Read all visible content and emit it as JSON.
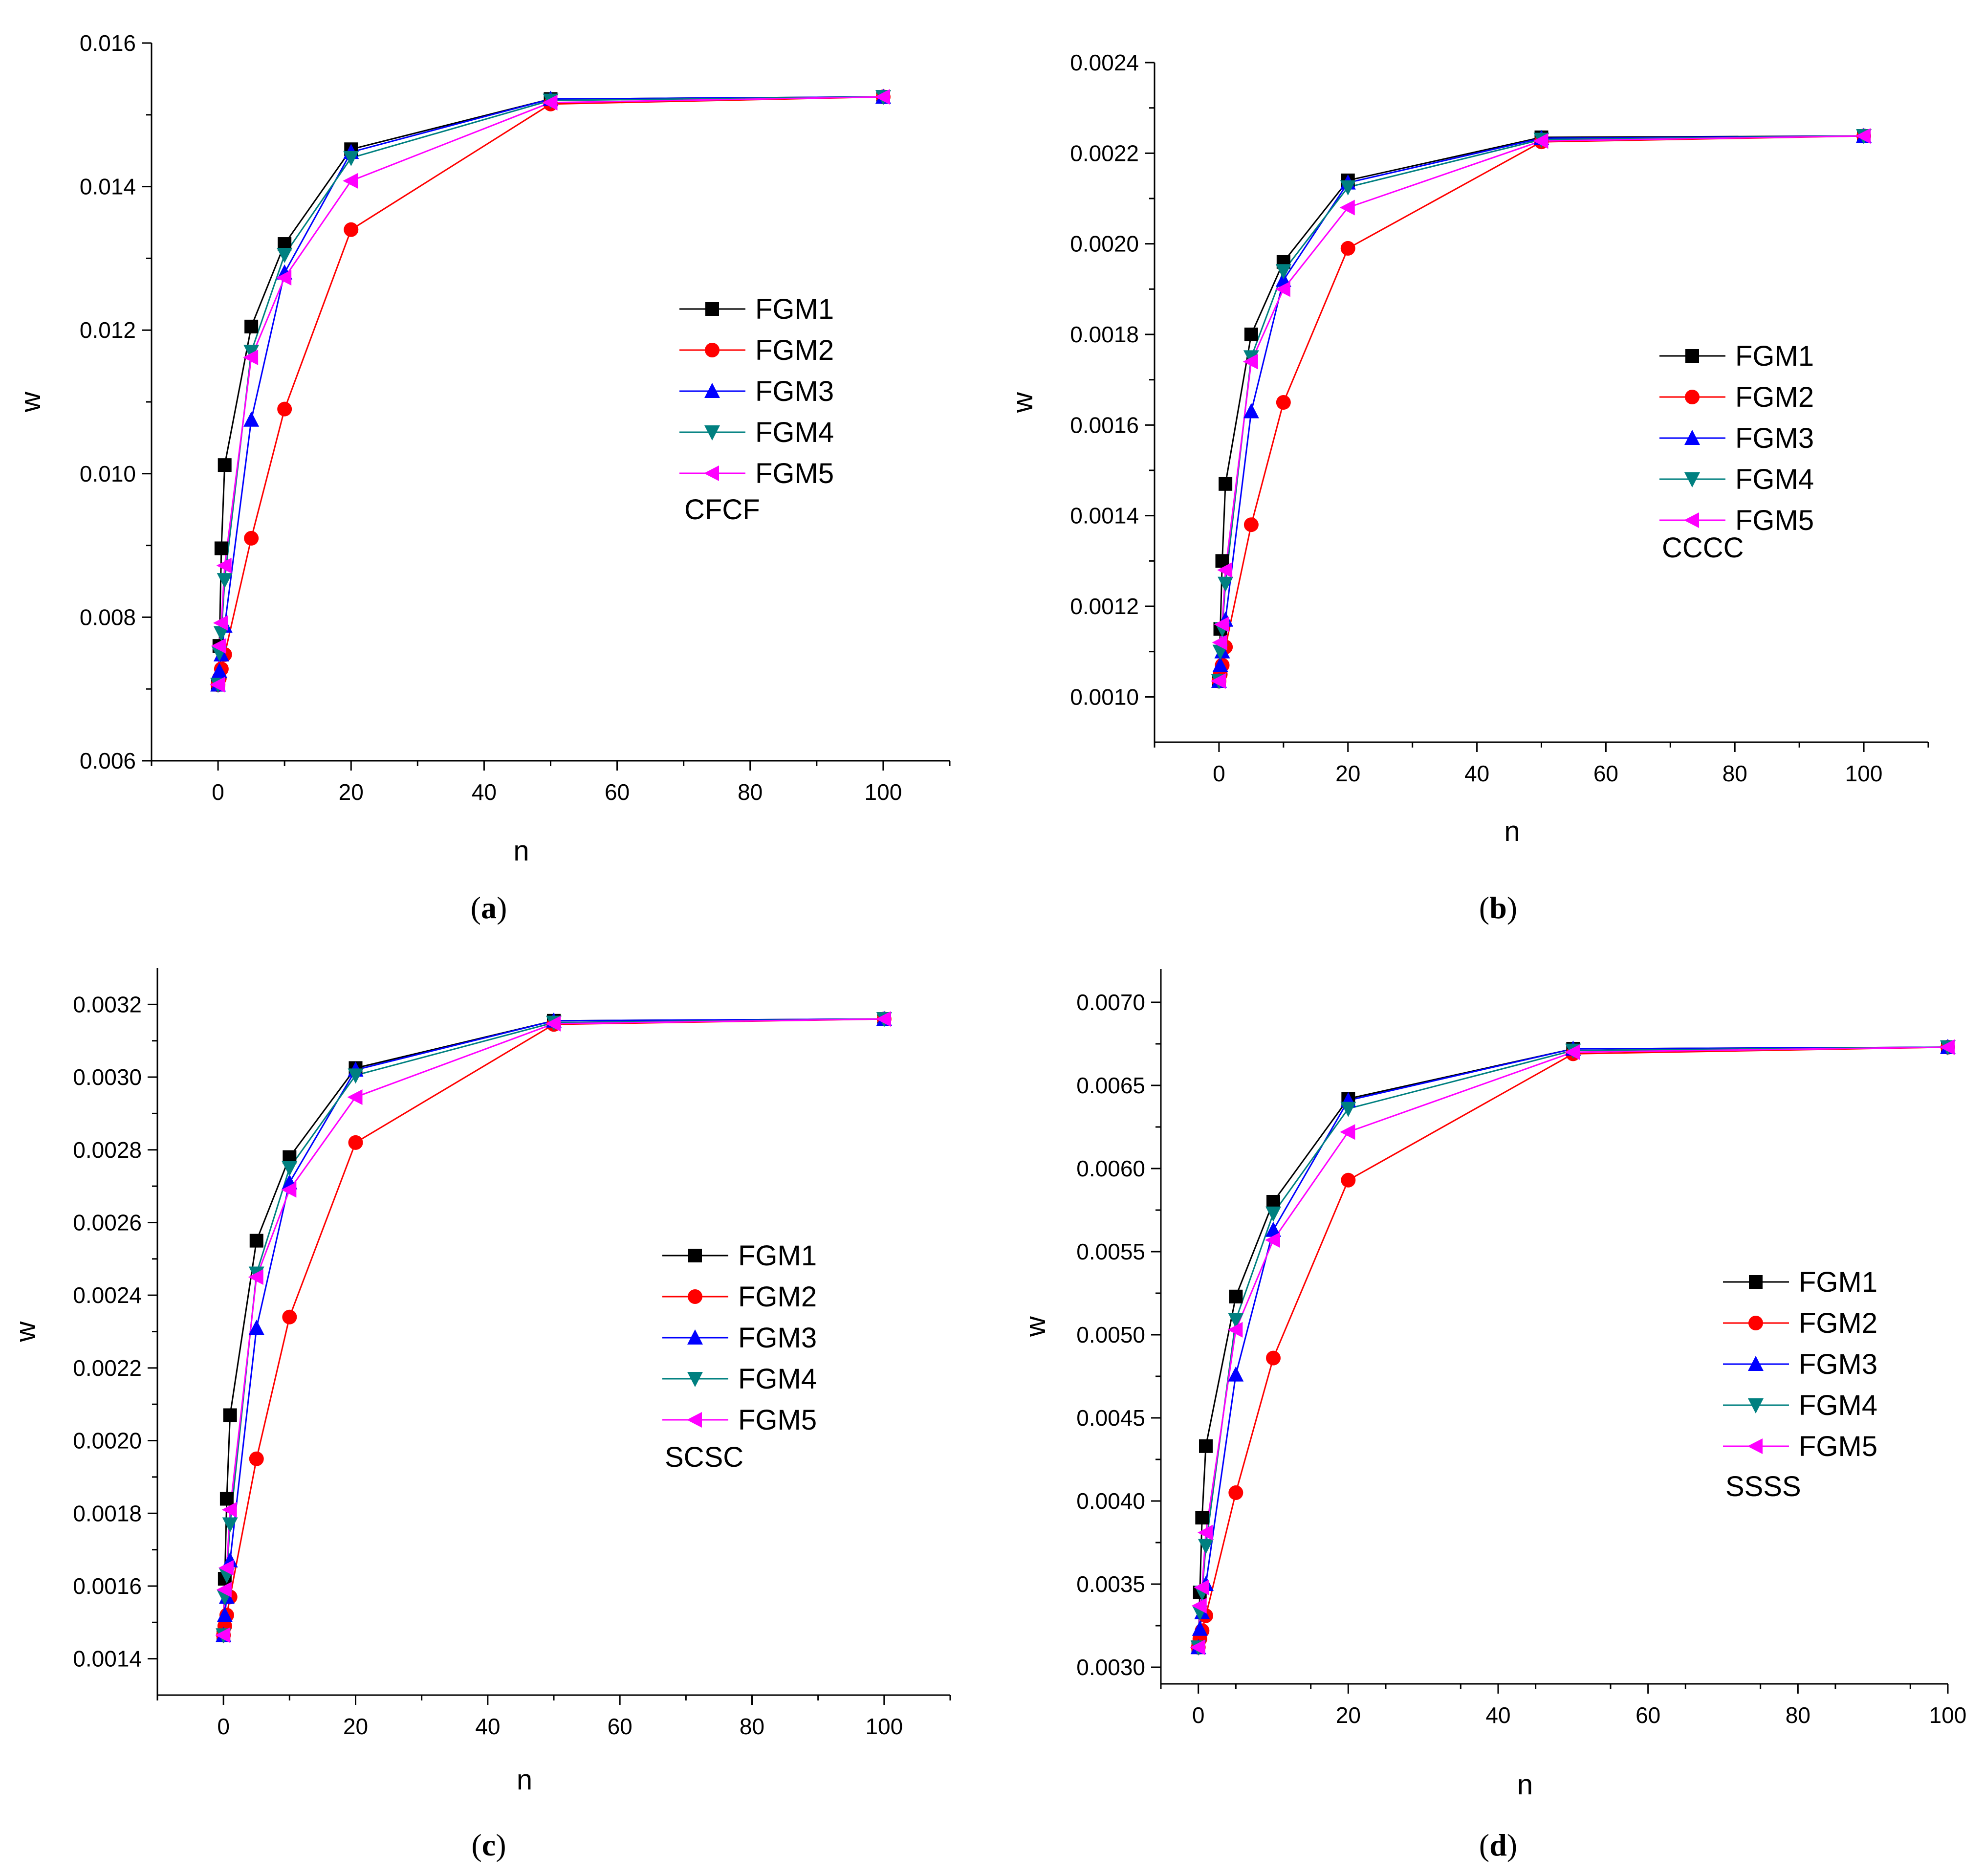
{
  "figure": {
    "legend_entries": [
      "FGM1",
      "FGM2",
      "FGM3",
      "FGM4",
      "FGM5"
    ],
    "series_styles": [
      {
        "name": "FGM1",
        "color": "#000000",
        "marker": "square"
      },
      {
        "name": "FGM2",
        "color": "#ff0000",
        "marker": "circle"
      },
      {
        "name": "FGM3",
        "color": "#0000ff",
        "marker": "triangle-up"
      },
      {
        "name": "FGM4",
        "color": "#008080",
        "marker": "triangle-down"
      },
      {
        "name": "FGM5",
        "color": "#ff00ff",
        "marker": "triangle-left"
      }
    ]
  },
  "chart_data": [
    {
      "type": "line",
      "panel_label": "a",
      "annotation": "CFCF",
      "xlabel": "n",
      "ylabel": "w",
      "xlim": [
        -10,
        110
      ],
      "ylim": [
        0.006,
        0.016
      ],
      "xticks": [
        0,
        20,
        40,
        60,
        80,
        100
      ],
      "yticks": [
        0.006,
        0.008,
        0.01,
        0.012,
        0.014,
        0.016
      ],
      "ytick_labels": [
        "0.006",
        "0.008",
        "0.010",
        "0.012",
        "0.014",
        "0.016"
      ],
      "legend_position": "center-right",
      "x": [
        0,
        0.2,
        0.5,
        1,
        5,
        10,
        20,
        50,
        100
      ],
      "series": [
        {
          "name": "FGM1",
          "values": [
            0.00706,
            0.0076,
            0.00896,
            0.01012,
            0.01205,
            0.0132,
            0.01452,
            0.01522,
            0.01525
          ]
        },
        {
          "name": "FGM2",
          "values": [
            0.00706,
            0.00715,
            0.00728,
            0.00748,
            0.0091,
            0.0109,
            0.0134,
            0.01515,
            0.01525
          ]
        },
        {
          "name": "FGM3",
          "values": [
            0.00706,
            0.00725,
            0.00748,
            0.00788,
            0.01075,
            0.0128,
            0.01448,
            0.01522,
            0.01525
          ]
        },
        {
          "name": "FGM4",
          "values": [
            0.00706,
            0.0075,
            0.00778,
            0.00852,
            0.0117,
            0.01305,
            0.0144,
            0.0152,
            0.01525
          ]
        },
        {
          "name": "FGM5",
          "values": [
            0.00706,
            0.0076,
            0.00792,
            0.00872,
            0.01162,
            0.01273,
            0.01408,
            0.01517,
            0.01525
          ]
        }
      ]
    },
    {
      "type": "line",
      "panel_label": "b",
      "annotation": "CCCC",
      "xlabel": "n",
      "ylabel": "w",
      "xlim": [
        -10,
        110
      ],
      "ylim": [
        0.0009,
        0.0024
      ],
      "xticks": [
        0,
        20,
        40,
        60,
        80,
        100
      ],
      "yticks": [
        0.001,
        0.0012,
        0.0014,
        0.0016,
        0.0018,
        0.002,
        0.0022,
        0.0024
      ],
      "ytick_labels": [
        "0.0010",
        "0.0012",
        "0.0014",
        "0.0016",
        "0.0018",
        "0.0020",
        "0.0022",
        "0.0024"
      ],
      "legend_position": "center-right",
      "x": [
        0,
        0.2,
        0.5,
        1,
        5,
        10,
        20,
        50,
        100
      ],
      "series": [
        {
          "name": "FGM1",
          "values": [
            0.001035,
            0.00115,
            0.0013,
            0.00147,
            0.0018,
            0.00196,
            0.00214,
            0.002235,
            0.002238
          ]
        },
        {
          "name": "FGM2",
          "values": [
            0.001035,
            0.00105,
            0.00107,
            0.00111,
            0.00138,
            0.00165,
            0.00199,
            0.002225,
            0.002238
          ]
        },
        {
          "name": "FGM3",
          "values": [
            0.001035,
            0.00107,
            0.0011,
            0.00117,
            0.00163,
            0.00192,
            0.002135,
            0.002233,
            0.002238
          ]
        },
        {
          "name": "FGM4",
          "values": [
            0.001035,
            0.0011,
            0.00115,
            0.00125,
            0.00175,
            0.00194,
            0.002125,
            0.00223,
            0.002238
          ]
        },
        {
          "name": "FGM5",
          "values": [
            0.001035,
            0.00112,
            0.00116,
            0.00128,
            0.00174,
            0.0019,
            0.00208,
            0.002227,
            0.002238
          ]
        }
      ]
    },
    {
      "type": "line",
      "panel_label": "c",
      "annotation": "SCSC",
      "xlabel": "n",
      "ylabel": "w",
      "xlim": [
        -10,
        110
      ],
      "ylim": [
        0.0013,
        0.0033
      ],
      "xticks": [
        0,
        20,
        40,
        60,
        80,
        100
      ],
      "yticks": [
        0.0014,
        0.0016,
        0.0018,
        0.002,
        0.0022,
        0.0024,
        0.0026,
        0.0028,
        0.003,
        0.0032
      ],
      "ytick_labels": [
        "0.0014",
        "0.0016",
        "0.0018",
        "0.0020",
        "0.0022",
        "0.0024",
        "0.0026",
        "0.0028",
        "0.0030",
        "0.0032"
      ],
      "legend_position": "center-right",
      "x": [
        0,
        0.2,
        0.5,
        1,
        5,
        10,
        20,
        50,
        100
      ],
      "series": [
        {
          "name": "FGM1",
          "values": [
            0.001465,
            0.00162,
            0.00184,
            0.00207,
            0.00255,
            0.00278,
            0.003025,
            0.003155,
            0.00316
          ]
        },
        {
          "name": "FGM2",
          "values": [
            0.001465,
            0.00149,
            0.00152,
            0.00157,
            0.00195,
            0.00234,
            0.00282,
            0.003145,
            0.00316
          ]
        },
        {
          "name": "FGM3",
          "values": [
            0.001465,
            0.00152,
            0.00157,
            0.00167,
            0.00231,
            0.00271,
            0.00302,
            0.003155,
            0.00316
          ]
        },
        {
          "name": "FGM4",
          "values": [
            0.001465,
            0.00157,
            0.00163,
            0.00177,
            0.00246,
            0.00275,
            0.003005,
            0.00315,
            0.00316
          ]
        },
        {
          "name": "FGM5",
          "values": [
            0.001465,
            0.00159,
            0.00165,
            0.00181,
            0.00245,
            0.00269,
            0.002945,
            0.003147,
            0.00316
          ]
        }
      ]
    },
    {
      "type": "line",
      "panel_label": "d",
      "annotation": "SSSS",
      "xlabel": "n",
      "ylabel": "w",
      "xlim": [
        -5,
        100
      ],
      "ylim": [
        0.0029,
        0.0072
      ],
      "xticks": [
        0,
        20,
        40,
        60,
        80,
        100
      ],
      "yticks": [
        0.003,
        0.0035,
        0.004,
        0.0045,
        0.005,
        0.0055,
        0.006,
        0.0065,
        0.007
      ],
      "ytick_labels": [
        "0.0030",
        "0.0035",
        "0.0040",
        "0.0045",
        "0.0050",
        "0.0055",
        "0.0060",
        "0.0065",
        "0.0070"
      ],
      "legend_position": "center-right",
      "x": [
        0,
        0.2,
        0.5,
        1,
        5,
        10,
        20,
        50,
        100
      ],
      "series": [
        {
          "name": "FGM1",
          "values": [
            0.00312,
            0.00345,
            0.0039,
            0.00433,
            0.00523,
            0.0058,
            0.00642,
            0.00672,
            0.00673
          ]
        },
        {
          "name": "FGM2",
          "values": [
            0.00312,
            0.00317,
            0.00322,
            0.00331,
            0.00405,
            0.00486,
            0.00593,
            0.00669,
            0.00673
          ]
        },
        {
          "name": "FGM3",
          "values": [
            0.00312,
            0.00323,
            0.00333,
            0.0035,
            0.00476,
            0.00563,
            0.00641,
            0.00672,
            0.00673
          ]
        },
        {
          "name": "FGM4",
          "values": [
            0.00312,
            0.00333,
            0.00345,
            0.00373,
            0.00509,
            0.00573,
            0.00636,
            0.00671,
            0.00673
          ]
        },
        {
          "name": "FGM5",
          "values": [
            0.00312,
            0.00337,
            0.00348,
            0.00381,
            0.00503,
            0.00557,
            0.00622,
            0.0067,
            0.00673
          ]
        }
      ]
    }
  ]
}
